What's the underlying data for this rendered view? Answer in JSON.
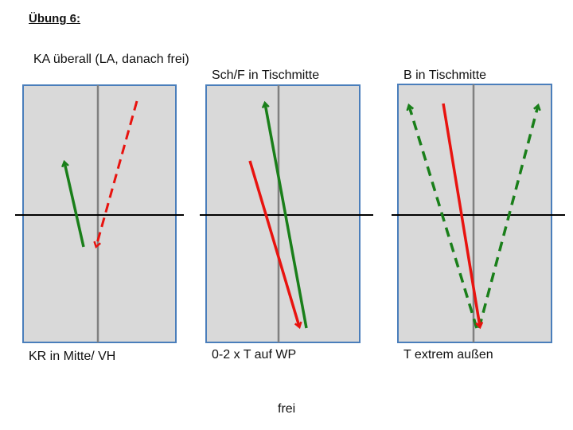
{
  "title": "Übung 6:",
  "panels": [
    {
      "top_label": "KA überall (LA, danach frei)",
      "bottom_label": "KR in Mitte/ VH"
    },
    {
      "top_label": "Sch/F in Tischmitte",
      "bottom_label": "0-2 x T auf WP"
    },
    {
      "top_label": "B in Tischmitte",
      "bottom_label": "T extrem außen"
    }
  ],
  "footer": "frei",
  "colors": {
    "table_fill": "#d9d9d9",
    "table_border": "#4a7ebb",
    "center_line": "#808080",
    "net": "#000000",
    "green_arrow": "#1a7f1a",
    "red_arrow": "#e8130f"
  }
}
